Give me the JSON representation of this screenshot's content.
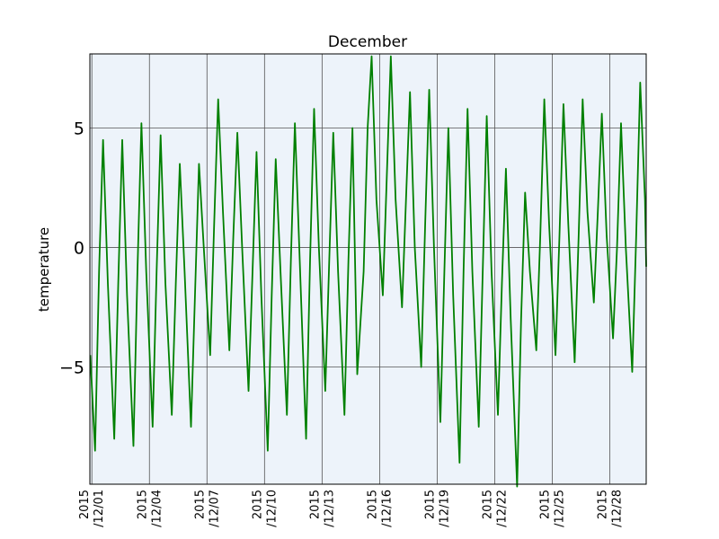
{
  "chart_data": {
    "type": "line",
    "title": "December",
    "ylabel": "temperature",
    "x": [
      "2015-11-30 22:00",
      "2015-12-01 04:00",
      "2015-12-01 09:00",
      "2015-12-01 14:00",
      "2015-12-01 20:00",
      "2015-12-02 04:00",
      "2015-12-02 09:00",
      "2015-12-02 14:00",
      "2015-12-02 20:00",
      "2015-12-03 04:00",
      "2015-12-03 09:00",
      "2015-12-03 14:00",
      "2015-12-03 20:00",
      "2015-12-04 04:00",
      "2015-12-04 09:00",
      "2015-12-04 14:00",
      "2015-12-04 20:00",
      "2015-12-05 04:00",
      "2015-12-05 09:00",
      "2015-12-05 14:00",
      "2015-12-05 20:00",
      "2015-12-06 04:00",
      "2015-12-06 09:00",
      "2015-12-06 14:00",
      "2015-12-06 20:00",
      "2015-12-07 04:00",
      "2015-12-07 09:00",
      "2015-12-07 14:00",
      "2015-12-07 20:00",
      "2015-12-08 04:00",
      "2015-12-08 09:00",
      "2015-12-08 14:00",
      "2015-12-08 20:00",
      "2015-12-09 04:00",
      "2015-12-09 09:00",
      "2015-12-09 14:00",
      "2015-12-09 20:00",
      "2015-12-10 04:00",
      "2015-12-10 09:00",
      "2015-12-10 14:00",
      "2015-12-10 20:00",
      "2015-12-11 04:00",
      "2015-12-11 09:00",
      "2015-12-11 14:00",
      "2015-12-11 20:00",
      "2015-12-12 04:00",
      "2015-12-12 09:00",
      "2015-12-12 14:00",
      "2015-12-12 20:00",
      "2015-12-13 04:00",
      "2015-12-13 09:00",
      "2015-12-13 14:00",
      "2015-12-13 20:00",
      "2015-12-14 04:00",
      "2015-12-14 09:00",
      "2015-12-14 14:00",
      "2015-12-14 20:00",
      "2015-12-15 04:00",
      "2015-12-15 09:00",
      "2015-12-15 14:00",
      "2015-12-15 20:00",
      "2015-12-16 04:00",
      "2015-12-16 09:00",
      "2015-12-16 14:00",
      "2015-12-16 20:00",
      "2015-12-17 04:00",
      "2015-12-17 09:00",
      "2015-12-17 14:00",
      "2015-12-17 20:00",
      "2015-12-18 04:00",
      "2015-12-18 09:00",
      "2015-12-18 14:00",
      "2015-12-18 20:00",
      "2015-12-19 04:00",
      "2015-12-19 09:00",
      "2015-12-19 14:00",
      "2015-12-19 20:00",
      "2015-12-20 04:00",
      "2015-12-20 09:00",
      "2015-12-20 14:00",
      "2015-12-20 20:00",
      "2015-12-21 04:00",
      "2015-12-21 09:00",
      "2015-12-21 14:00",
      "2015-12-21 20:00",
      "2015-12-22 04:00",
      "2015-12-22 09:00",
      "2015-12-22 14:00",
      "2015-12-22 20:00",
      "2015-12-23 04:00",
      "2015-12-23 09:00",
      "2015-12-23 14:00",
      "2015-12-23 20:00",
      "2015-12-24 04:00",
      "2015-12-24 09:00",
      "2015-12-24 14:00",
      "2015-12-24 20:00",
      "2015-12-25 04:00",
      "2015-12-25 09:00",
      "2015-12-25 14:00",
      "2015-12-25 20:00",
      "2015-12-26 04:00",
      "2015-12-26 09:00",
      "2015-12-26 14:00",
      "2015-12-26 20:00",
      "2015-12-27 04:00",
      "2015-12-27 09:00",
      "2015-12-27 14:00",
      "2015-12-27 20:00",
      "2015-12-28 04:00",
      "2015-12-28 09:00",
      "2015-12-28 14:00",
      "2015-12-28 20:00",
      "2015-12-29 04:00",
      "2015-12-29 09:00",
      "2015-12-29 14:00",
      "2015-12-29 20:00",
      "2015-12-29 21:30"
    ],
    "series": [
      {
        "color": "#008000",
        "values": [
          -4.5,
          -8.5,
          -1,
          4.5,
          -1.5,
          -8,
          -1.5,
          4.5,
          -2,
          -8.3,
          -1,
          5.2,
          -1,
          -7.5,
          -1,
          4.7,
          -1.5,
          -7,
          -1.5,
          3.5,
          -1,
          -7.5,
          -2,
          3.5,
          0,
          -4.5,
          1,
          6.2,
          1.5,
          -4.3,
          0.5,
          4.8,
          0,
          -6,
          -1,
          4,
          -2,
          -8.5,
          -2,
          3.7,
          -1,
          -7,
          -0.5,
          5.2,
          -0.5,
          -8,
          -0.5,
          5.8,
          0,
          -6,
          -0.5,
          4.8,
          -1,
          -7,
          -0.5,
          5,
          -5.3,
          -1,
          5,
          8,
          2,
          -2,
          3,
          8,
          2,
          -2.5,
          2,
          6.5,
          0,
          -5,
          1,
          6.6,
          0,
          -7.3,
          -1,
          5,
          -2,
          -9,
          -1,
          5.8,
          -1,
          -7.5,
          -1,
          5.5,
          -1,
          -7,
          -1.5,
          3.3,
          -3,
          -10,
          -3,
          2.3,
          -1,
          -4.3,
          0.5,
          6.2,
          1,
          -4.5,
          0.5,
          6,
          1,
          -4.8,
          0.5,
          6.2,
          1.5,
          -2.3,
          1.5,
          5.6,
          0.5,
          -3.8,
          0,
          5.2,
          0,
          -5.2,
          0.5,
          6.9,
          2,
          -0.8
        ]
      }
    ],
    "xlim": [
      "2015-11-30 21:30",
      "2015-12-29 21:30"
    ],
    "xticks": [
      {
        "value": "2015-12-01 00:00",
        "label": "2015\n/12/01"
      },
      {
        "value": "2015-12-04 00:00",
        "label": "2015\n/12/04"
      },
      {
        "value": "2015-12-07 00:00",
        "label": "2015\n/12/07"
      },
      {
        "value": "2015-12-10 00:00",
        "label": "2015\n/12/10"
      },
      {
        "value": "2015-12-13 00:00",
        "label": "2015\n/12/13"
      },
      {
        "value": "2015-12-16 00:00",
        "label": "2015\n/12/16"
      },
      {
        "value": "2015-12-19 00:00",
        "label": "2015\n/12/19"
      },
      {
        "value": "2015-12-22 00:00",
        "label": "2015\n/12/22"
      },
      {
        "value": "2015-12-25 00:00",
        "label": "2015\n/12/25"
      },
      {
        "value": "2015-12-28 00:00",
        "label": "2015\n/12/28"
      }
    ],
    "ylim": [
      -9.9,
      8.1
    ],
    "yticks": [
      {
        "value": -5,
        "label": "−5"
      },
      0,
      5
    ],
    "grid": true
  }
}
